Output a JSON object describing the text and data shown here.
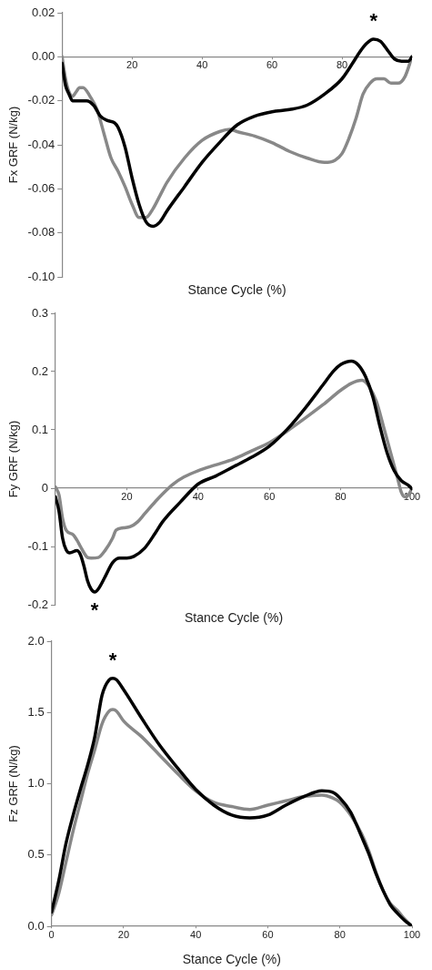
{
  "chart_data": [
    {
      "type": "line",
      "xlabel": "Stance Cycle (%)",
      "ylabel": "Fx GRF (N/kg)",
      "marker": "none",
      "xlim": [
        0,
        100
      ],
      "xticks": [
        20,
        40,
        60,
        80
      ],
      "ylim": [
        -0.1,
        0.02
      ],
      "yticks": [
        {
          "value": -0.1,
          "label": "-0.10"
        },
        {
          "value": -0.08,
          "label": "-0.08"
        },
        {
          "value": -0.06,
          "label": "-0.06"
        },
        {
          "value": -0.04,
          "label": "-0.04"
        },
        {
          "value": -0.02,
          "label": "-0.02"
        },
        {
          "value": 0,
          "label": "0.00"
        },
        {
          "value": 0.02,
          "label": "0.02"
        }
      ],
      "annotations": [
        {
          "text": "*",
          "x": 89,
          "y": 0.008
        }
      ],
      "series": [
        {
          "color": "#000000",
          "x": [
            0,
            1,
            2,
            3,
            5,
            7,
            9,
            11,
            13,
            15,
            16,
            18,
            20,
            22,
            24,
            26,
            28,
            30,
            35,
            40,
            45,
            50,
            55,
            60,
            65,
            70,
            75,
            80,
            83,
            85,
            87,
            89,
            91,
            93,
            95,
            97,
            99,
            100
          ],
          "values": [
            -0.003,
            -0.013,
            -0.017,
            -0.02,
            -0.02,
            -0.02,
            -0.022,
            -0.027,
            -0.029,
            -0.03,
            -0.032,
            -0.041,
            -0.055,
            -0.067,
            -0.075,
            -0.077,
            -0.075,
            -0.07,
            -0.059,
            -0.048,
            -0.039,
            -0.031,
            -0.027,
            -0.025,
            -0.024,
            -0.022,
            -0.017,
            -0.01,
            -0.003,
            0.002,
            0.006,
            0.008,
            0.007,
            0.003,
            -0.001,
            -0.002,
            -0.002,
            0
          ]
        },
        {
          "color": "#888888",
          "x": [
            0,
            1,
            2,
            3,
            4,
            5,
            6,
            8,
            10,
            12,
            14,
            16,
            18,
            20,
            22,
            24,
            26,
            28,
            30,
            35,
            40,
            45,
            48,
            50,
            55,
            60,
            65,
            70,
            75,
            78,
            80,
            82,
            84,
            86,
            88,
            90,
            92,
            94,
            96,
            98,
            100
          ],
          "values": [
            0,
            -0.01,
            -0.016,
            -0.018,
            -0.016,
            -0.014,
            -0.014,
            -0.018,
            -0.024,
            -0.035,
            -0.046,
            -0.052,
            -0.059,
            -0.067,
            -0.073,
            -0.073,
            -0.069,
            -0.063,
            -0.057,
            -0.046,
            -0.038,
            -0.034,
            -0.033,
            -0.034,
            -0.036,
            -0.039,
            -0.043,
            -0.046,
            -0.048,
            -0.047,
            -0.044,
            -0.037,
            -0.028,
            -0.017,
            -0.012,
            -0.01,
            -0.01,
            -0.012,
            -0.012,
            -0.009,
            0
          ]
        }
      ]
    },
    {
      "type": "line",
      "xlabel": "Stance Cycle (%)",
      "ylabel": "Fy GRF (N/kg)",
      "marker": "none",
      "xlim": [
        0,
        100
      ],
      "xticks": [
        20,
        40,
        60,
        80,
        100
      ],
      "ylim": [
        -0.2,
        0.3
      ],
      "yticks": [
        -0.2,
        -0.1,
        0,
        0.1,
        0.2,
        0.3
      ],
      "annotations": [
        {
          "text": "*",
          "x": 11,
          "y": -0.178
        }
      ],
      "series": [
        {
          "color": "#000000",
          "x": [
            0,
            1,
            2,
            3,
            4,
            6,
            7,
            8,
            9,
            10,
            11,
            12,
            14,
            16,
            18,
            20,
            22,
            25,
            28,
            30,
            35,
            40,
            45,
            50,
            55,
            60,
            65,
            70,
            75,
            78,
            80,
            83,
            85,
            87,
            89,
            91,
            93,
            95,
            97,
            99,
            100
          ],
          "values": [
            -0.015,
            -0.04,
            -0.086,
            -0.106,
            -0.111,
            -0.107,
            -0.114,
            -0.134,
            -0.159,
            -0.173,
            -0.178,
            -0.173,
            -0.151,
            -0.128,
            -0.12,
            -0.12,
            -0.117,
            -0.103,
            -0.077,
            -0.058,
            -0.024,
            0.007,
            0.021,
            0.037,
            0.053,
            0.072,
            0.101,
            0.137,
            0.177,
            0.201,
            0.212,
            0.218,
            0.211,
            0.191,
            0.157,
            0.106,
            0.061,
            0.03,
            0.013,
            0.005,
            -0.001
          ]
        },
        {
          "color": "#888888",
          "x": [
            0,
            1,
            2,
            3,
            5,
            6,
            7,
            8,
            9,
            10,
            12,
            14,
            16,
            17,
            19,
            21,
            23,
            25,
            28,
            30,
            33,
            36,
            40,
            45,
            50,
            55,
            60,
            65,
            70,
            75,
            80,
            83,
            86,
            88,
            90,
            92,
            94,
            96,
            97,
            98,
            99,
            100
          ],
          "values": [
            0.002,
            -0.012,
            -0.052,
            -0.072,
            -0.08,
            -0.089,
            -0.1,
            -0.111,
            -0.119,
            -0.12,
            -0.119,
            -0.106,
            -0.086,
            -0.072,
            -0.068,
            -0.066,
            -0.058,
            -0.044,
            -0.023,
            -0.01,
            0.007,
            0.019,
            0.03,
            0.04,
            0.05,
            0.064,
            0.078,
            0.098,
            0.12,
            0.143,
            0.168,
            0.18,
            0.185,
            0.174,
            0.149,
            0.106,
            0.061,
            0.016,
            -0.007,
            -0.015,
            -0.012,
            0
          ]
        }
      ]
    },
    {
      "type": "line",
      "xlabel": "Stance Cycle (%)",
      "ylabel": "Fz GRF (N/kg)",
      "marker": "none",
      "xlim": [
        0,
        100
      ],
      "xticks": [
        0,
        20,
        40,
        60,
        80,
        100
      ],
      "ylim": [
        0,
        2
      ],
      "yticks": [
        {
          "value": 0,
          "label": "0.0"
        },
        {
          "value": 0.5,
          "label": "0.5"
        },
        {
          "value": 1,
          "label": "1.0"
        },
        {
          "value": 1.5,
          "label": "1.5"
        },
        {
          "value": 2,
          "label": "2.0"
        }
      ],
      "annotations": [
        {
          "text": "*",
          "x": 17,
          "y": 1.74
        }
      ],
      "series": [
        {
          "color": "#000000",
          "x": [
            0,
            2,
            4,
            6,
            8,
            10,
            12,
            14,
            16,
            17,
            18,
            20,
            25,
            30,
            35,
            40,
            45,
            50,
            55,
            60,
            65,
            70,
            75,
            78,
            80,
            83,
            86,
            88,
            90,
            92,
            94,
            96,
            98,
            100
          ],
          "values": [
            0.1,
            0.32,
            0.58,
            0.78,
            0.96,
            1.13,
            1.33,
            1.62,
            1.73,
            1.74,
            1.73,
            1.66,
            1.46,
            1.27,
            1.11,
            0.96,
            0.85,
            0.78,
            0.76,
            0.78,
            0.85,
            0.91,
            0.95,
            0.94,
            0.9,
            0.8,
            0.63,
            0.51,
            0.37,
            0.25,
            0.15,
            0.09,
            0.04,
            0
          ]
        },
        {
          "color": "#888888",
          "x": [
            0,
            2,
            4,
            6,
            8,
            10,
            12,
            14,
            16,
            17,
            18,
            20,
            25,
            30,
            35,
            40,
            45,
            50,
            55,
            60,
            65,
            70,
            75,
            78,
            80,
            83,
            86,
            88,
            90,
            92,
            94,
            96,
            98,
            100
          ],
          "values": [
            0.08,
            0.23,
            0.45,
            0.67,
            0.87,
            1.07,
            1.24,
            1.42,
            1.51,
            1.52,
            1.51,
            1.44,
            1.33,
            1.2,
            1.07,
            0.95,
            0.87,
            0.84,
            0.82,
            0.85,
            0.88,
            0.91,
            0.92,
            0.9,
            0.87,
            0.78,
            0.65,
            0.53,
            0.38,
            0.25,
            0.16,
            0.11,
            0.05,
            0
          ]
        }
      ]
    }
  ]
}
